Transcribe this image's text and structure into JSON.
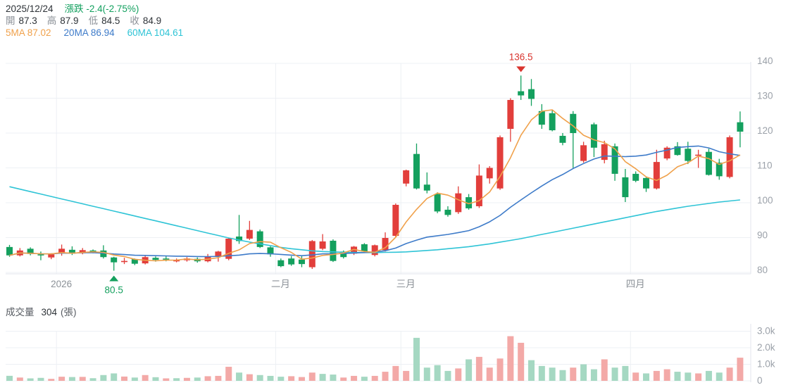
{
  "header": {
    "date": "2025/12/24",
    "change_label": "漲跌",
    "change_value": "-2.4(-2.75%)",
    "change_color": "#13a05f",
    "ohlc": [
      {
        "label": "開",
        "value": "87.3"
      },
      {
        "label": "高",
        "value": "87.9"
      },
      {
        "label": "低",
        "value": "84.5"
      },
      {
        "label": "收",
        "value": "84.9"
      }
    ],
    "ma_legend": [
      {
        "label": "5MA",
        "value": "87.02",
        "color": "#f0a14b"
      },
      {
        "label": "20MA",
        "value": "86.94",
        "color": "#3e7bc9"
      },
      {
        "label": "60MA",
        "value": "104.61",
        "color": "#2fc4d6"
      }
    ]
  },
  "volume_header": {
    "label": "成交量",
    "value": "304",
    "unit": "(張)"
  },
  "chart_data": {
    "type": "candlestick+volume",
    "title": "",
    "price_axis": {
      "min": 80,
      "max": 140,
      "step": 10,
      "ticks": [
        140,
        130,
        120,
        110,
        100,
        90,
        80
      ]
    },
    "volume_axis": {
      "max": 3000,
      "ticks": [
        {
          "v": 3000,
          "label": "3.0k"
        },
        {
          "v": 2000,
          "label": "2.0k"
        },
        {
          "v": 1000,
          "label": "1.0k"
        },
        {
          "v": 0,
          "label": "0"
        }
      ]
    },
    "x_labels": [
      {
        "label": "2026",
        "boundary_index": 4.5
      },
      {
        "label": "二月",
        "boundary_index": 25.5
      },
      {
        "label": "三月",
        "boundary_index": 37.5
      },
      {
        "label": "四月",
        "boundary_index": 59.5
      }
    ],
    "annotations": {
      "high": {
        "index": 49,
        "price": 136.5,
        "label": "136.5"
      },
      "low": {
        "index": 10,
        "price": 80.5,
        "label": "80.5"
      }
    },
    "legend_position": "top-left",
    "grid": true,
    "colors": {
      "up": "#e23e3b",
      "down": "#14a05e",
      "vol_up": "#f3a9a7",
      "vol_down": "#a5d8c2",
      "ma5": "#f0a14b",
      "ma20": "#3e7bc9",
      "ma60": "#2fc4d6",
      "grid": "#edf0f4",
      "border": "#e3e6ec",
      "axis_text": "#9ba1a9",
      "month_text": "#8c9298",
      "high_marker": "#d9342e",
      "low_marker": "#14a05e"
    },
    "candles_format": [
      "open",
      "high",
      "low",
      "close"
    ],
    "candles": [
      [
        87.3,
        87.9,
        84.5,
        84.9
      ],
      [
        84.9,
        87.0,
        84.6,
        86.3
      ],
      [
        86.8,
        87.2,
        84.9,
        85.3
      ],
      [
        85.2,
        86.0,
        83.5,
        84.9
      ],
      [
        84.3,
        85.5,
        83.8,
        85.2
      ],
      [
        85.5,
        88.0,
        84.8,
        86.8
      ],
      [
        86.5,
        87.5,
        85.0,
        85.4
      ],
      [
        85.5,
        87.0,
        85.2,
        86.4
      ],
      [
        86.3,
        86.6,
        85.5,
        85.8
      ],
      [
        86.3,
        87.8,
        84.0,
        84.4
      ],
      [
        84.3,
        84.5,
        80.5,
        82.9
      ],
      [
        83.0,
        84.2,
        82.4,
        83.3
      ],
      [
        83.8,
        84.0,
        82.1,
        82.5
      ],
      [
        82.6,
        84.8,
        82.3,
        84.4
      ],
      [
        84.2,
        84.6,
        83.1,
        83.6
      ],
      [
        84.0,
        84.8,
        83.2,
        83.8
      ],
      [
        83.3,
        84.0,
        82.9,
        83.5
      ],
      [
        83.5,
        84.4,
        83.1,
        84.0
      ],
      [
        83.9,
        84.3,
        82.8,
        83.2
      ],
      [
        83.2,
        85.3,
        82.9,
        84.5
      ],
      [
        84.5,
        86.2,
        83.1,
        86.0
      ],
      [
        83.9,
        90.0,
        83.5,
        89.7
      ],
      [
        90.3,
        96.5,
        88.2,
        89.0
      ],
      [
        89.7,
        94.8,
        89.3,
        92.2
      ],
      [
        91.8,
        92.3,
        87.0,
        87.3
      ],
      [
        87.2,
        87.5,
        84.5,
        85.2
      ],
      [
        83.5,
        84.0,
        81.5,
        81.8
      ],
      [
        84.0,
        84.7,
        81.9,
        82.3
      ],
      [
        83.7,
        84.7,
        81.5,
        82.4
      ],
      [
        81.5,
        89.3,
        81.0,
        89.0
      ],
      [
        86.8,
        91.0,
        86.4,
        88.9
      ],
      [
        89.1,
        89.5,
        83.0,
        83.3
      ],
      [
        86.0,
        86.3,
        84.0,
        84.4
      ],
      [
        85.4,
        87.6,
        85.0,
        87.4
      ],
      [
        88.1,
        88.4,
        85.8,
        86.0
      ],
      [
        85.0,
        88.0,
        84.6,
        87.8
      ],
      [
        86.4,
        91.5,
        86.0,
        89.9
      ],
      [
        90.5,
        99.8,
        90.0,
        99.4
      ],
      [
        105.5,
        109.5,
        104.7,
        109.3
      ],
      [
        114.0,
        117.0,
        103.8,
        104.1
      ],
      [
        105.2,
        108.7,
        102.7,
        103.5
      ],
      [
        102.5,
        103.0,
        97.0,
        97.5
      ],
      [
        98.0,
        99.0,
        96.0,
        96.5
      ],
      [
        97.3,
        104.7,
        96.8,
        102.7
      ],
      [
        101.6,
        102.5,
        98.0,
        98.4
      ],
      [
        99.0,
        111.0,
        98.5,
        107.8
      ],
      [
        107.0,
        110.5,
        105.5,
        110.0
      ],
      [
        104.1,
        119.3,
        103.7,
        118.8
      ],
      [
        121.2,
        130.0,
        117.5,
        129.5
      ],
      [
        132.0,
        136.5,
        129.5,
        130.8
      ],
      [
        132.6,
        135.5,
        127.8,
        129.8
      ],
      [
        126.3,
        128.3,
        121.2,
        122.4
      ],
      [
        125.7,
        126.5,
        120.5,
        120.8
      ],
      [
        119.2,
        120.0,
        116.5,
        117.2
      ],
      [
        125.5,
        126.3,
        110.0,
        120.0
      ],
      [
        112.0,
        117.5,
        111.5,
        116.5
      ],
      [
        122.5,
        123.0,
        113.1,
        115.8
      ],
      [
        112.3,
        117.8,
        111.3,
        116.8
      ],
      [
        116.2,
        117.0,
        106.3,
        108.3
      ],
      [
        107.3,
        109.7,
        100.2,
        101.6
      ],
      [
        108.3,
        109.0,
        105.9,
        106.3
      ],
      [
        107.1,
        107.5,
        103.1,
        104.1
      ],
      [
        104.1,
        115.2,
        103.8,
        111.7
      ],
      [
        112.7,
        116.2,
        112.2,
        115.8
      ],
      [
        116.2,
        117.4,
        113.5,
        113.7
      ],
      [
        115.5,
        117.5,
        111.1,
        112.0
      ],
      [
        113.5,
        115.2,
        110.0,
        113.8
      ],
      [
        114.6,
        115.5,
        107.8,
        108.0
      ],
      [
        111.5,
        112.6,
        106.6,
        107.6
      ],
      [
        107.4,
        119.3,
        107.0,
        118.8
      ],
      [
        123.1,
        126.2,
        115.9,
        120.4
      ]
    ],
    "volumes": [
      304,
      200,
      150,
      180,
      120,
      250,
      230,
      240,
      160,
      350,
      450,
      260,
      200,
      350,
      220,
      150,
      160,
      180,
      200,
      280,
      300,
      850,
      500,
      400,
      350,
      300,
      250,
      280,
      230,
      500,
      420,
      380,
      200,
      300,
      250,
      300,
      550,
      900,
      600,
      2600,
      800,
      950,
      600,
      750,
      1300,
      1450,
      800,
      1350,
      2700,
      2300,
      1250,
      900,
      800,
      650,
      800,
      1000,
      700,
      1300,
      800,
      900,
      500,
      450,
      600,
      700,
      550,
      500,
      450,
      600,
      500,
      800,
      1400
    ],
    "ma60_values": [
      104.6,
      103.9,
      103.2,
      102.5,
      101.8,
      101.1,
      100.4,
      99.7,
      99.0,
      98.3,
      97.6,
      96.9,
      96.2,
      95.5,
      94.8,
      94.1,
      93.4,
      92.7,
      92.0,
      91.3,
      90.6,
      89.9,
      89.3,
      88.7,
      88.2,
      87.7,
      87.2,
      86.8,
      86.5,
      86.2,
      86.0,
      85.9,
      85.8,
      85.75,
      85.7,
      85.7,
      85.75,
      85.8,
      85.9,
      86.1,
      86.3,
      86.5,
      86.8,
      87.1,
      87.4,
      87.8,
      88.2,
      88.7,
      89.2,
      89.7,
      90.3,
      90.9,
      91.5,
      92.1,
      92.7,
      93.3,
      93.9,
      94.5,
      95.1,
      95.7,
      96.3,
      96.9,
      97.5,
      98.0,
      98.5,
      99.0,
      99.4,
      99.8,
      100.2,
      100.5,
      100.8
    ]
  }
}
